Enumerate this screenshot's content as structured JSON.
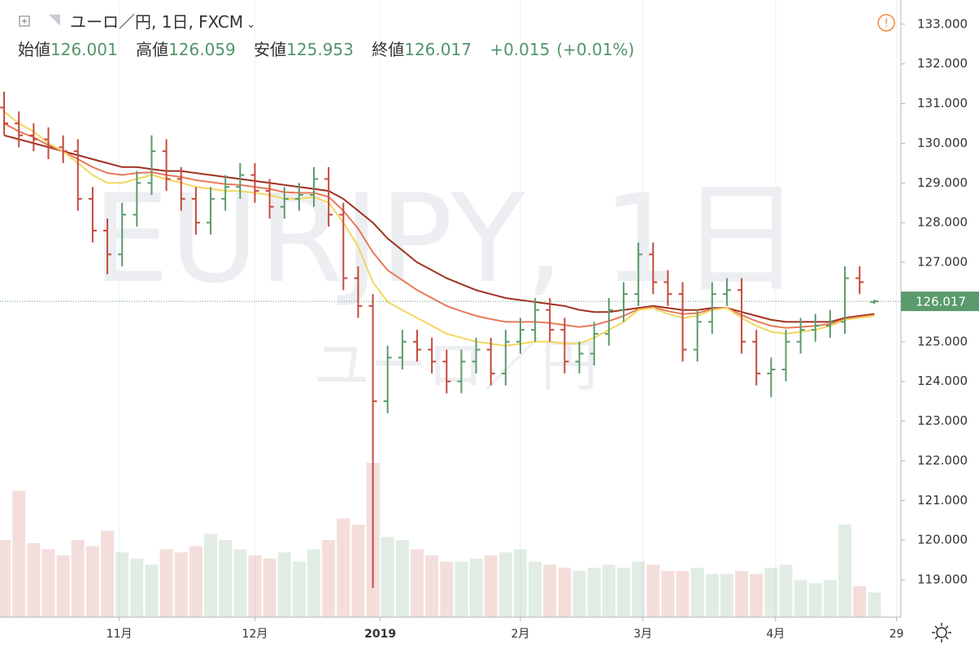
{
  "chart_data": {
    "type": "ohlc",
    "title": "ユーロ／円, 1日, FXCM",
    "ohlc_labels": [
      "始値",
      "高値",
      "安値",
      "終値"
    ],
    "change": "+0.015",
    "change_pct": "(+0.01%)",
    "watermark": "EURJPY, 1日",
    "watermark_sub": "ユーロ／円",
    "ylim": [
      118.06,
      133.61
    ],
    "yticks": [
      {
        "value": 119,
        "label": "119.000"
      },
      {
        "value": 120,
        "label": "120.000"
      },
      {
        "value": 121,
        "label": "121.000"
      },
      {
        "value": 122,
        "label": "122.000"
      },
      {
        "value": 123,
        "label": "123.000"
      },
      {
        "value": 124,
        "label": "124.000"
      },
      {
        "value": 125,
        "label": "125.000"
      },
      {
        "value": 126,
        "label": "126.000"
      },
      {
        "value": 127,
        "label": "127.000"
      },
      {
        "value": 128,
        "label": "128.000"
      },
      {
        "value": 129,
        "label": "129.000"
      },
      {
        "value": 130,
        "label": "130.000"
      },
      {
        "value": 131,
        "label": "131.000"
      },
      {
        "value": 132,
        "label": "132.000"
      },
      {
        "value": 133,
        "label": "133.000"
      }
    ],
    "xlim": [
      -0.28,
      60.8
    ],
    "xticks": [
      {
        "value": 7.8,
        "label": "11月"
      },
      {
        "value": 17.0,
        "label": "12月"
      },
      {
        "value": 25.5,
        "label": "2019"
      },
      {
        "value": 35.0,
        "label": "2月"
      },
      {
        "value": 43.3,
        "label": "3月"
      },
      {
        "value": 52.3,
        "label": "4月"
      },
      {
        "value": 60.5,
        "label": "29"
      }
    ],
    "grid": true,
    "open": [
      130.9,
      130.5,
      130.2,
      130.1,
      129.9,
      129.8,
      128.6,
      127.8,
      127.2,
      128.2,
      129.0,
      129.8,
      129.1,
      128.6,
      128.0,
      128.6,
      128.9,
      129.2,
      128.8,
      128.4,
      128.6,
      128.7,
      129.1,
      128.2,
      126.6,
      125.9,
      123.5,
      124.6,
      125.0,
      124.8,
      124.5,
      124.0,
      124.5,
      124.8,
      124.2,
      125.0,
      125.3,
      125.8,
      125.3,
      124.5,
      124.7,
      125.2,
      125.8,
      126.2,
      127.2,
      126.5,
      126.2,
      124.8,
      125.5,
      126.2,
      126.3,
      125.0,
      124.2,
      124.3,
      125.0,
      125.3,
      125.4,
      125.5,
      126.6,
      126.001
    ],
    "high": [
      131.3,
      130.8,
      130.5,
      130.4,
      130.2,
      130.1,
      128.9,
      128.1,
      128.5,
      129.3,
      130.2,
      130.1,
      129.4,
      128.9,
      128.9,
      129.2,
      129.5,
      129.5,
      129.1,
      128.9,
      129.0,
      129.4,
      129.4,
      128.5,
      126.9,
      126.2,
      124.9,
      125.3,
      125.3,
      125.1,
      124.8,
      124.8,
      125.1,
      125.1,
      125.3,
      125.6,
      126.1,
      126.1,
      125.6,
      125.0,
      125.5,
      126.1,
      126.5,
      127.5,
      127.5,
      126.8,
      126.5,
      125.8,
      126.5,
      126.6,
      126.6,
      125.3,
      124.6,
      125.3,
      125.6,
      125.7,
      125.8,
      126.9,
      126.9,
      126.059
    ],
    "low": [
      130.2,
      129.9,
      129.8,
      129.6,
      129.5,
      128.3,
      127.5,
      126.7,
      126.9,
      127.9,
      128.7,
      128.8,
      128.3,
      127.7,
      127.7,
      128.3,
      128.6,
      128.5,
      128.1,
      128.1,
      128.3,
      128.4,
      127.9,
      126.3,
      125.6,
      118.8,
      123.2,
      124.3,
      124.5,
      124.2,
      123.7,
      123.7,
      124.2,
      123.9,
      123.9,
      124.7,
      125.0,
      125.0,
      124.2,
      124.2,
      124.4,
      124.9,
      125.5,
      125.9,
      126.2,
      125.9,
      124.5,
      124.5,
      125.2,
      125.9,
      124.7,
      123.9,
      123.6,
      124.0,
      124.7,
      125.0,
      125.1,
      125.2,
      126.2,
      125.953
    ],
    "close": [
      130.5,
      130.2,
      130.1,
      129.9,
      129.8,
      128.6,
      127.8,
      127.2,
      128.2,
      129.0,
      129.8,
      129.1,
      128.6,
      128.0,
      128.6,
      128.9,
      129.2,
      128.8,
      128.4,
      128.6,
      128.7,
      129.1,
      128.2,
      126.6,
      125.9,
      123.5,
      124.6,
      125.0,
      124.8,
      124.5,
      124.0,
      124.5,
      124.8,
      124.2,
      125.0,
      125.3,
      125.8,
      125.3,
      124.5,
      124.7,
      125.2,
      125.8,
      126.2,
      127.2,
      126.5,
      126.2,
      124.8,
      125.5,
      126.2,
      126.3,
      125.0,
      124.2,
      124.3,
      125.0,
      125.3,
      125.4,
      125.5,
      126.6,
      126.5,
      126.017
    ],
    "up_color": "#5b9a6c",
    "down_color": "#c4493d",
    "volume": [
      25,
      41,
      24,
      22,
      20,
      25,
      23,
      28,
      21,
      19,
      17,
      22,
      21,
      23,
      27,
      25,
      22,
      20,
      19,
      21,
      18,
      22,
      25,
      32,
      30,
      50,
      26,
      25,
      22,
      20,
      18,
      18,
      19,
      20,
      21,
      22,
      18,
      17,
      16,
      15,
      16,
      17,
      16,
      18,
      17,
      15,
      15,
      16,
      14,
      14,
      15,
      14,
      16,
      17,
      12,
      11,
      12,
      30,
      10,
      8
    ],
    "volume_max": 200,
    "series": [
      {
        "color": "#a0301e",
        "values": [
          130.2,
          130.1,
          130.0,
          129.9,
          129.8,
          129.7,
          129.6,
          129.5,
          129.4,
          129.4,
          129.35,
          129.3,
          129.3,
          129.25,
          129.2,
          129.15,
          129.1,
          129.05,
          129.0,
          128.95,
          128.9,
          128.85,
          128.8,
          128.6,
          128.3,
          128.0,
          127.6,
          127.3,
          127.0,
          126.8,
          126.6,
          126.45,
          126.3,
          126.2,
          126.1,
          126.05,
          126.0,
          125.95,
          125.9,
          125.8,
          125.75,
          125.75,
          125.8,
          125.85,
          125.9,
          125.85,
          125.8,
          125.8,
          125.85,
          125.85,
          125.75,
          125.65,
          125.55,
          125.5,
          125.5,
          125.5,
          125.5,
          125.6,
          125.65,
          125.7
        ]
      },
      {
        "color": "#e8795a",
        "values": [
          130.5,
          130.3,
          130.15,
          129.95,
          129.8,
          129.6,
          129.4,
          129.25,
          129.2,
          129.25,
          129.27,
          129.2,
          129.15,
          129.07,
          129.02,
          128.97,
          128.95,
          128.9,
          128.85,
          128.77,
          128.75,
          128.75,
          128.65,
          128.3,
          127.85,
          127.25,
          126.8,
          126.55,
          126.3,
          126.1,
          125.9,
          125.77,
          125.65,
          125.57,
          125.5,
          125.5,
          125.5,
          125.47,
          125.42,
          125.37,
          125.42,
          125.52,
          125.65,
          125.82,
          125.87,
          125.77,
          125.7,
          125.72,
          125.82,
          125.85,
          125.67,
          125.52,
          125.4,
          125.35,
          125.37,
          125.4,
          125.45,
          125.57,
          125.62,
          125.67
        ]
      },
      {
        "color": "#f2d75e",
        "values": [
          130.8,
          130.5,
          130.3,
          130.0,
          129.8,
          129.5,
          129.2,
          129.0,
          129.0,
          129.1,
          129.2,
          129.1,
          129.0,
          128.9,
          128.85,
          128.8,
          128.8,
          128.75,
          128.7,
          128.6,
          128.6,
          128.65,
          128.5,
          128.0,
          127.4,
          126.5,
          126.0,
          125.8,
          125.6,
          125.4,
          125.2,
          125.1,
          125.0,
          124.95,
          124.9,
          124.95,
          125.0,
          125.0,
          124.95,
          124.95,
          125.1,
          125.3,
          125.5,
          125.8,
          125.85,
          125.7,
          125.6,
          125.65,
          125.8,
          125.85,
          125.6,
          125.4,
          125.25,
          125.2,
          125.25,
          125.3,
          125.4,
          125.55,
          125.6,
          125.65
        ]
      }
    ]
  }
}
